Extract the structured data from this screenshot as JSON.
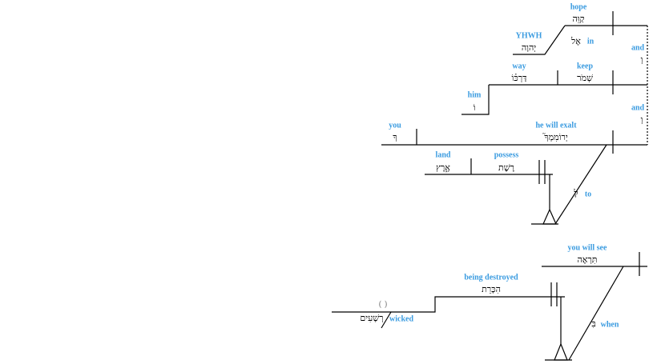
{
  "words": [
    {
      "gloss": "hope",
      "hebrew": "קַוֵּה"
    },
    {
      "gloss": "YHWH",
      "hebrew": "יְהוָה"
    },
    {
      "gloss": "in",
      "hebrew": "אֶל"
    },
    {
      "gloss": "and",
      "hebrew": "וְ"
    },
    {
      "gloss": "way",
      "hebrew": "דַּרְכּ֗וֹ"
    },
    {
      "gloss": "keep",
      "hebrew": "שְׁמֹר"
    },
    {
      "gloss": "him",
      "hebrew": "וֹ"
    },
    {
      "gloss": "and",
      "hebrew": "וְ"
    },
    {
      "gloss": "you",
      "hebrew": "ךָ"
    },
    {
      "gloss": "he will exalt",
      "hebrew": "יְרוֹמִמְךָ֮"
    },
    {
      "gloss": "land",
      "hebrew": "אָ֑רֶץ"
    },
    {
      "gloss": "possess",
      "hebrew": "רֶשֶׁת"
    },
    {
      "gloss": "to",
      "hebrew": "לָ"
    },
    {
      "gloss": "you will see",
      "hebrew": "תִּרְאֶה"
    },
    {
      "gloss": "being destroyed",
      "hebrew": "הִכָּרֵת"
    },
    {
      "gloss": "wicked",
      "hebrew": "רְשָׁעִים"
    },
    {
      "gloss": "when",
      "hebrew": "בִּ"
    }
  ],
  "placeholder": "( )"
}
